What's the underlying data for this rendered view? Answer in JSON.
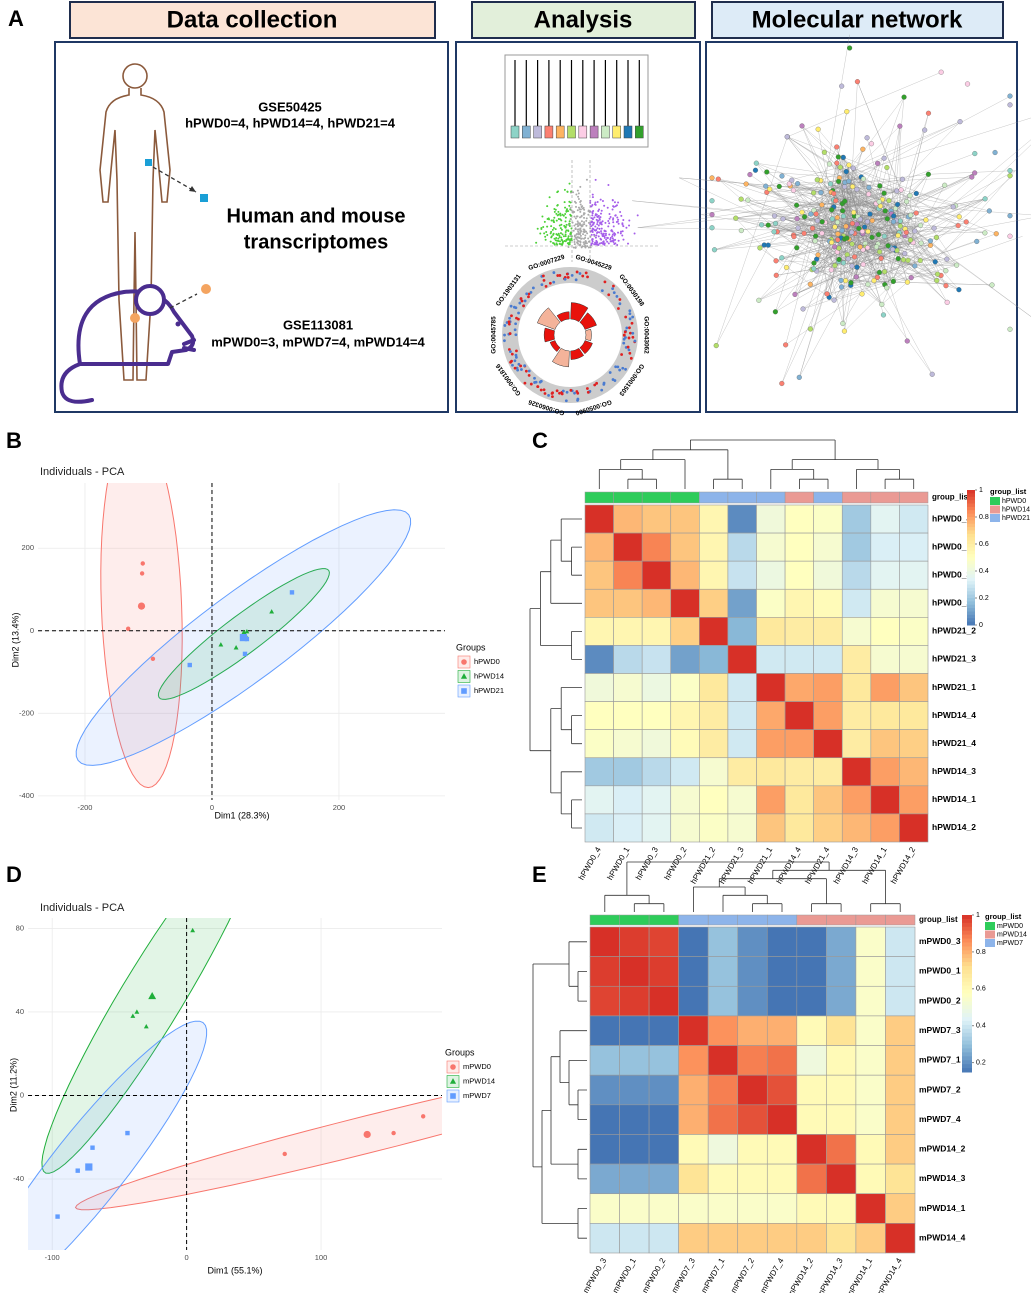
{
  "panel_labels": [
    "A",
    "B",
    "C",
    "D",
    "E"
  ],
  "panel_a": {
    "headers": [
      "Data collection",
      "Analysis",
      "Molecular network"
    ],
    "human": {
      "dataset": "GSE50425",
      "samples": "hPWD0=4, hPWD14=4, hPWD21=4"
    },
    "center_text": [
      "Human and mouse",
      "transcriptomes"
    ],
    "mouse": {
      "dataset": "GSE113081",
      "samples": "mPWD0=3, mPWD7=4, mPWD14=4"
    },
    "go_terms": [
      "GO:0045229",
      "GO:0030198",
      "GO:0043062",
      "GO:0001503",
      "GO:0050900",
      "GO:0060326",
      "GO:0001816",
      "GO:0045785",
      "GO:1903131",
      "GO:0007229"
    ]
  },
  "chart_data": [
    {
      "type": "scatter",
      "title": "Individuals - PCA",
      "x_label": "Dim1 (28.3%)",
      "y_label": "Dim2 (13.4%)",
      "xlim": [
        -274,
        367
      ],
      "ylim": [
        -410,
        358
      ],
      "xticks": [
        -200,
        0,
        200
      ],
      "yticks": [
        -400,
        -200,
        0,
        200
      ],
      "grid": true,
      "legend_title": "Groups",
      "series": [
        {
          "name": "hPWD0",
          "color": "#f8766d",
          "marker": "circle",
          "x": [
            -109,
            -110,
            -132,
            -93
          ],
          "values": [
            163,
            139,
            5,
            -68
          ]
        },
        {
          "name": "hPWD14",
          "color": "#1fae3a",
          "marker": "triangle",
          "x": [
            94,
            55,
            14,
            38
          ],
          "values": [
            46,
            -2,
            -34,
            -41
          ]
        },
        {
          "name": "hPWD21",
          "color": "#619cff",
          "marker": "square",
          "x": [
            126,
            -35,
            55,
            52
          ],
          "values": [
            93,
            -83,
            -20,
            -56
          ]
        }
      ]
    },
    {
      "type": "heatmap",
      "categories": [
        "hPWD0_4",
        "hPWD0_1",
        "hPWD0_3",
        "hPWD0_2",
        "hPWD21_2",
        "hPWD21_3",
        "hPWD21_1",
        "hPWD14_4",
        "hPWD21_4",
        "hPWD14_3",
        "hPWD14_1",
        "hPWD14_2"
      ],
      "values": [
        [
          1,
          0.75,
          0.72,
          0.72,
          0.55,
          0.05,
          0.42,
          0.5,
          0.48,
          0.2,
          0.35,
          0.3
        ],
        [
          0.75,
          1,
          0.85,
          0.72,
          0.55,
          0.25,
          0.45,
          0.5,
          0.45,
          0.2,
          0.32,
          0.32
        ],
        [
          0.72,
          0.85,
          1,
          0.75,
          0.55,
          0.28,
          0.4,
          0.5,
          0.42,
          0.25,
          0.35,
          0.35
        ],
        [
          0.72,
          0.72,
          0.75,
          1,
          0.7,
          0.1,
          0.48,
          0.55,
          0.52,
          0.3,
          0.45,
          0.45
        ],
        [
          0.55,
          0.55,
          0.55,
          0.7,
          1,
          0.15,
          0.62,
          0.6,
          0.6,
          0.45,
          0.5,
          0.48
        ],
        [
          0.05,
          0.25,
          0.28,
          0.1,
          0.15,
          1,
          0.3,
          0.3,
          0.3,
          0.6,
          0.45,
          0.45
        ],
        [
          0.42,
          0.45,
          0.4,
          0.48,
          0.62,
          0.3,
          1,
          0.78,
          0.8,
          0.62,
          0.8,
          0.72
        ],
        [
          0.5,
          0.5,
          0.5,
          0.55,
          0.6,
          0.3,
          0.78,
          1,
          0.8,
          0.6,
          0.62,
          0.62
        ],
        [
          0.48,
          0.45,
          0.42,
          0.52,
          0.6,
          0.3,
          0.8,
          0.8,
          1,
          0.6,
          0.72,
          0.7
        ],
        [
          0.2,
          0.2,
          0.25,
          0.3,
          0.45,
          0.6,
          0.62,
          0.6,
          0.6,
          1,
          0.8,
          0.75
        ],
        [
          0.35,
          0.32,
          0.35,
          0.45,
          0.5,
          0.45,
          0.8,
          0.62,
          0.72,
          0.8,
          1,
          0.8
        ],
        [
          0.3,
          0.32,
          0.35,
          0.45,
          0.48,
          0.45,
          0.72,
          0.62,
          0.7,
          0.75,
          0.8,
          1
        ]
      ],
      "clim": [
        0,
        1
      ],
      "cticks": [
        0,
        0.2,
        0.4,
        0.6,
        0.8,
        1
      ],
      "annotation_label": "group_list",
      "legend_title": "group_list",
      "groups": [
        {
          "name": "hPWD0",
          "color": "#2ecc5a"
        },
        {
          "name": "hPWD14",
          "color": "#ea9a94"
        },
        {
          "name": "hPWD21",
          "color": "#8db4ea"
        }
      ]
    },
    {
      "type": "scatter",
      "title": "Individuals - PCA",
      "x_label": "Dim1 (55.1%)",
      "y_label": "Dim2 (11.2%)",
      "xlim": [
        -118,
        190
      ],
      "ylim": [
        -74,
        85
      ],
      "xticks": [
        -100,
        0,
        100
      ],
      "yticks": [
        -40,
        0,
        40,
        80
      ],
      "grid": true,
      "legend_title": "Groups",
      "series": [
        {
          "name": "mPWD0",
          "color": "#f8766d",
          "marker": "circle",
          "x": [
            73,
            154,
            176
          ],
          "values": [
            -28,
            -18,
            -10
          ]
        },
        {
          "name": "mPWD14",
          "color": "#1fae3a",
          "marker": "triangle",
          "x": [
            4.5,
            -40,
            -37,
            -30
          ],
          "values": [
            79,
            38,
            40,
            33
          ]
        },
        {
          "name": "mPWD7",
          "color": "#619cff",
          "marker": "square",
          "x": [
            -96,
            -81,
            -70,
            -44
          ],
          "values": [
            -58,
            -36,
            -25,
            -18
          ]
        }
      ]
    },
    {
      "type": "heatmap",
      "categories": [
        "mPWD0_3",
        "mPWD0_1",
        "mPWD0_2",
        "mPWD7_3",
        "mPWD7_1",
        "mPWD7_2",
        "mPWD7_4",
        "mPWD14_2",
        "mPWD14_3",
        "mPWD14_1",
        "mPWD14_4"
      ],
      "values": [
        [
          1,
          0.98,
          0.97,
          0.12,
          0.3,
          0.2,
          0.15,
          0.12,
          0.25,
          0.55,
          0.4
        ],
        [
          0.98,
          1,
          0.98,
          0.12,
          0.3,
          0.2,
          0.15,
          0.12,
          0.25,
          0.55,
          0.4
        ],
        [
          0.97,
          0.98,
          1,
          0.12,
          0.3,
          0.2,
          0.15,
          0.12,
          0.25,
          0.55,
          0.4
        ],
        [
          0.12,
          0.12,
          0.12,
          1,
          0.85,
          0.8,
          0.8,
          0.6,
          0.7,
          0.55,
          0.75
        ],
        [
          0.3,
          0.3,
          0.3,
          0.85,
          1,
          0.88,
          0.9,
          0.5,
          0.6,
          0.55,
          0.75
        ],
        [
          0.2,
          0.2,
          0.2,
          0.8,
          0.88,
          1,
          0.95,
          0.6,
          0.6,
          0.55,
          0.75
        ],
        [
          0.15,
          0.15,
          0.15,
          0.8,
          0.9,
          0.95,
          1,
          0.6,
          0.6,
          0.55,
          0.75
        ],
        [
          0.12,
          0.12,
          0.12,
          0.6,
          0.5,
          0.6,
          0.6,
          1,
          0.9,
          0.6,
          0.75
        ],
        [
          0.25,
          0.25,
          0.25,
          0.7,
          0.6,
          0.6,
          0.6,
          0.9,
          1,
          0.6,
          0.7
        ],
        [
          0.55,
          0.55,
          0.55,
          0.55,
          0.55,
          0.55,
          0.55,
          0.6,
          0.6,
          1,
          0.75
        ],
        [
          0.4,
          0.4,
          0.4,
          0.75,
          0.75,
          0.75,
          0.75,
          0.75,
          0.7,
          0.75,
          1
        ]
      ],
      "clim": [
        0.15,
        1
      ],
      "cticks": [
        0.2,
        0.4,
        0.6,
        0.8,
        1
      ],
      "annotation_label": "group_list",
      "legend_title": "group_list",
      "groups": [
        {
          "name": "mPWD0",
          "color": "#2ecc5a"
        },
        {
          "name": "mPWD14",
          "color": "#ea9a94"
        },
        {
          "name": "mPWD7",
          "color": "#8db4ea"
        }
      ]
    }
  ]
}
